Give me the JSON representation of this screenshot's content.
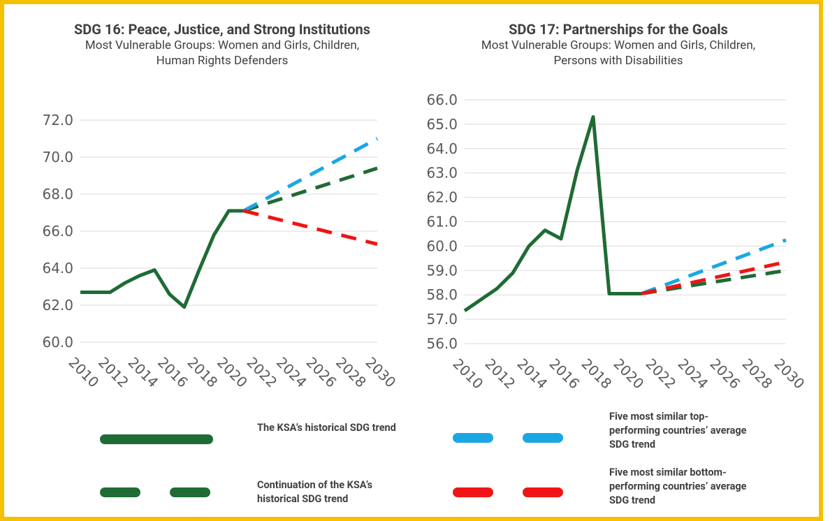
{
  "chart_data": [
    {
      "type": "line",
      "title": "SDG 16: Peace, Justice, and Strong Institutions",
      "subtitle": "Most Vulnerable Groups: Women and Girls, Children, Human Rights Defenders",
      "xlim": [
        2010,
        2030
      ],
      "xticks": [
        2010,
        2012,
        2014,
        2016,
        2018,
        2020,
        2022,
        2024,
        2026,
        2028,
        2030
      ],
      "ylim": [
        60,
        72
      ],
      "yticks": [
        {
          "value": 60,
          "label": "60.0"
        },
        {
          "value": 62,
          "label": "62.0"
        },
        {
          "value": 64,
          "label": "64.0"
        },
        {
          "value": 66,
          "label": "66.0"
        },
        {
          "value": 68,
          "label": "68.0"
        },
        {
          "value": 70,
          "label": "70.0"
        },
        {
          "value": 72,
          "label": "72.0"
        }
      ],
      "grid": true,
      "series": [
        {
          "color": "#1f6b35",
          "dashed": false,
          "x": [
            2010,
            2011,
            2012,
            2013,
            2014,
            2015,
            2016,
            2017,
            2018,
            2019,
            2020,
            2021
          ],
          "values": [
            62.7,
            62.7,
            62.7,
            63.2,
            63.6,
            63.9,
            62.6,
            61.9,
            63.9,
            65.8,
            67.1,
            67.1
          ]
        },
        {
          "color": "#1f6b35",
          "dashed": true,
          "x": [
            2021,
            2030
          ],
          "values": [
            67.1,
            69.4
          ]
        },
        {
          "color": "#1aa7e4",
          "dashed": true,
          "x": [
            2021,
            2030
          ],
          "values": [
            67.1,
            71.0
          ]
        },
        {
          "color": "#f01414",
          "dashed": true,
          "x": [
            2021,
            2030
          ],
          "values": [
            67.1,
            65.3
          ]
        }
      ]
    },
    {
      "type": "line",
      "title": "SDG 17: Partnerships for the Goals",
      "subtitle": "Most Vulnerable Groups: Women and Girls, Children, Persons with Disabilities",
      "xlim": [
        2010,
        2030
      ],
      "xticks": [
        2010,
        2012,
        2014,
        2016,
        2018,
        2020,
        2022,
        2024,
        2026,
        2028,
        2030
      ],
      "ylim": [
        56,
        66
      ],
      "yticks": [
        {
          "value": 56,
          "label": "56.0"
        },
        {
          "value": 57,
          "label": "57.0"
        },
        {
          "value": 58,
          "label": "58.0"
        },
        {
          "value": 59,
          "label": "59.0"
        },
        {
          "value": 60,
          "label": "60.0"
        },
        {
          "value": 61,
          "label": "61.0"
        },
        {
          "value": 62,
          "label": "62.0"
        },
        {
          "value": 63,
          "label": "63.0"
        },
        {
          "value": 64,
          "label": "64.0"
        },
        {
          "value": 65,
          "label": "65.0"
        },
        {
          "value": 66,
          "label": "66.0"
        }
      ],
      "grid": true,
      "series": [
        {
          "color": "#1f6b35",
          "dashed": false,
          "x": [
            2010,
            2011,
            2012,
            2013,
            2014,
            2015,
            2016,
            2017,
            2018,
            2019,
            2020,
            2021
          ],
          "values": [
            57.35,
            57.8,
            58.25,
            58.9,
            60.0,
            60.65,
            60.3,
            63.1,
            65.3,
            58.05,
            58.05,
            58.05
          ]
        },
        {
          "color": "#1f6b35",
          "dashed": true,
          "x": [
            2021,
            2030
          ],
          "values": [
            58.05,
            59.0
          ]
        },
        {
          "color": "#1aa7e4",
          "dashed": true,
          "x": [
            2021,
            2030
          ],
          "values": [
            58.05,
            60.25
          ]
        },
        {
          "color": "#f01414",
          "dashed": true,
          "x": [
            2021,
            2030
          ],
          "values": [
            58.05,
            59.35
          ]
        }
      ]
    }
  ],
  "legend": [
    {
      "name": "The KSA’s historical SDG trend",
      "color": "#1f6b35",
      "dashed": false
    },
    {
      "name": "Five most similar top-performing countries’ average SDG trend",
      "color": "#1aa7e4",
      "dashed": true
    },
    {
      "name": "Continuation of the KSA’s historical SDG trend",
      "color": "#1f6b35",
      "dashed": true
    },
    {
      "name": "Five most similar bottom-performing countries’ average SDG trend",
      "color": "#f01414",
      "dashed": true
    }
  ]
}
